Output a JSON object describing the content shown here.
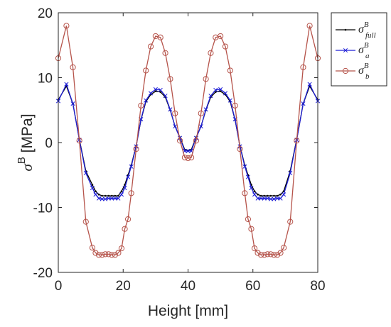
{
  "chart_data": {
    "type": "line",
    "title": "",
    "xlabel": "Height [mm]",
    "ylabel": "σ",
    "ylabel_superscript": "B",
    "ylabel_unit": "[MPa]",
    "xlim": [
      0,
      80
    ],
    "ylim": [
      -20,
      20
    ],
    "xticks": [
      "0",
      "20",
      "40",
      "60",
      "80"
    ],
    "yticks": [
      "20",
      "10",
      "0",
      "-10",
      "-20"
    ],
    "grid": false,
    "legend_position": "outside-top-right",
    "x": [
      0,
      2.5,
      4.5,
      6.5,
      8.5,
      10.5,
      11.5,
      12.5,
      13.5,
      14.5,
      15.5,
      16.5,
      17.5,
      18.5,
      19.5,
      20.5,
      21.5,
      22.5,
      24,
      25.5,
      27,
      28.5,
      30,
      31.5,
      33,
      34.5,
      36,
      37.5,
      39,
      40,
      41,
      42.5,
      44,
      45.5,
      47,
      48.5,
      50,
      51.5,
      53,
      54.5,
      56,
      57.5,
      58.5,
      59.5,
      60.5,
      61.5,
      62.5,
      63.5,
      64.5,
      65.5,
      66.5,
      67.5,
      68.5,
      69.5,
      71.5,
      73.5,
      75.5,
      77.5,
      80
    ],
    "series": [
      {
        "name": "σ_full^B",
        "name_base": "σ",
        "name_sup": "B",
        "name_sub": "full",
        "color": "#000000",
        "marker": "dot",
        "values": [
          6.6,
          8.7,
          6.0,
          0.5,
          -4.4,
          -6.5,
          -7.5,
          -8.0,
          -8.2,
          -8.2,
          -8.2,
          -8.2,
          -8.2,
          -8.2,
          -7.5,
          -6.5,
          -5.0,
          -3.5,
          -0.5,
          3.5,
          6.3,
          7.4,
          7.9,
          7.8,
          7.0,
          5.0,
          2.5,
          0.8,
          -1.1,
          -1.2,
          -1.1,
          0.8,
          2.5,
          5.0,
          7.0,
          7.8,
          7.9,
          7.4,
          6.3,
          3.5,
          -0.5,
          -3.5,
          -5.0,
          -6.5,
          -7.5,
          -8.0,
          -8.2,
          -8.2,
          -8.2,
          -8.2,
          -8.2,
          -8.2,
          -8.0,
          -7.5,
          -4.4,
          0.5,
          6.0,
          8.7,
          6.6
        ]
      },
      {
        "name": "σ_a^B",
        "name_base": "σ",
        "name_sup": "B",
        "name_sub": "a",
        "color": "#1f1fd6",
        "marker": "x",
        "values": [
          6.4,
          9.0,
          6.0,
          0.4,
          -4.7,
          -7.0,
          -8.0,
          -8.6,
          -8.7,
          -8.7,
          -8.6,
          -8.6,
          -8.6,
          -8.6,
          -8.0,
          -7.0,
          -5.3,
          -3.7,
          -0.6,
          3.6,
          6.5,
          7.6,
          8.2,
          8.1,
          7.2,
          5.1,
          2.5,
          0.7,
          -1.3,
          -1.3,
          -1.3,
          0.7,
          2.5,
          5.1,
          7.2,
          8.1,
          8.2,
          7.6,
          6.5,
          3.6,
          -0.6,
          -3.7,
          -5.3,
          -7.0,
          -8.0,
          -8.6,
          -8.6,
          -8.6,
          -8.6,
          -8.7,
          -8.7,
          -8.6,
          -8.6,
          -8.0,
          -4.7,
          0.4,
          6.0,
          9.0,
          6.4
        ]
      },
      {
        "name": "σ_b^B",
        "name_base": "σ",
        "name_sup": "B",
        "name_sub": "b",
        "color": "#b5534a",
        "marker": "o",
        "values": [
          13.0,
          18.0,
          11.6,
          0.3,
          -12.2,
          -16.2,
          -17.0,
          -17.3,
          -17.3,
          -17.2,
          -17.2,
          -17.3,
          -17.3,
          -17.0,
          -16.3,
          -13.3,
          -11.8,
          -7.8,
          -1.0,
          5.7,
          11.1,
          14.8,
          16.4,
          16.2,
          13.8,
          9.8,
          4.5,
          0.3,
          -2.3,
          -2.4,
          -2.3,
          0.3,
          4.5,
          9.8,
          13.8,
          16.2,
          16.4,
          14.8,
          11.1,
          5.7,
          -1.0,
          -7.8,
          -11.8,
          -13.3,
          -16.3,
          -17.0,
          -17.3,
          -17.3,
          -17.2,
          -17.2,
          -17.3,
          -17.3,
          -17.0,
          -16.2,
          -12.2,
          0.3,
          11.6,
          18.0,
          13.0
        ]
      }
    ]
  }
}
